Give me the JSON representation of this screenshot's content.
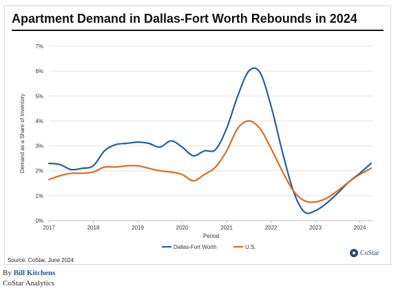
{
  "title": "Apartment Demand in Dallas-Fort Worth Rebounds in 2024",
  "source": "Source: CoStar, June 2024",
  "logo_text": "CoStar",
  "logo_icon": "costar-logo-icon",
  "byline": {
    "prefix": "By ",
    "author": "Bill Kitchens"
  },
  "organization": "CoStar Analytics",
  "chart_data": {
    "type": "line",
    "xlabel": "Period",
    "ylabel": "Demand  as a Share of Inventory",
    "x_ticks": [
      "2017",
      "2018",
      "2019",
      "2020",
      "2021",
      "2022",
      "2023",
      "2024"
    ],
    "y_ticks": [
      "0%",
      "1%",
      "2%",
      "3%",
      "4%",
      "5%",
      "6%",
      "7%"
    ],
    "xlim": [
      2017,
      2024.3
    ],
    "ylim": [
      0,
      7
    ],
    "grid": "horizontal",
    "legend_position": "bottom",
    "series": [
      {
        "name": "Dallas-Fort Worth",
        "color": "#1f5fa0",
        "x": [
          2017.0,
          2017.25,
          2017.5,
          2017.75,
          2018.0,
          2018.25,
          2018.5,
          2018.75,
          2019.0,
          2019.25,
          2019.5,
          2019.75,
          2020.0,
          2020.25,
          2020.5,
          2020.75,
          2021.0,
          2021.25,
          2021.5,
          2021.75,
          2022.0,
          2022.25,
          2022.5,
          2022.75,
          2023.0,
          2023.25,
          2023.5,
          2023.75,
          2024.0,
          2024.25
        ],
        "y": [
          2.3,
          2.25,
          2.05,
          2.1,
          2.2,
          2.8,
          3.05,
          3.1,
          3.15,
          3.1,
          2.95,
          3.2,
          2.95,
          2.6,
          2.8,
          2.85,
          3.7,
          5.0,
          6.0,
          5.95,
          4.6,
          2.8,
          1.2,
          0.35,
          0.4,
          0.7,
          1.1,
          1.55,
          1.9,
          2.3
        ]
      },
      {
        "name": "U.S.",
        "color": "#e06a1b",
        "x": [
          2017.0,
          2017.25,
          2017.5,
          2017.75,
          2018.0,
          2018.25,
          2018.5,
          2018.75,
          2019.0,
          2019.25,
          2019.5,
          2019.75,
          2020.0,
          2020.25,
          2020.5,
          2020.75,
          2021.0,
          2021.25,
          2021.5,
          2021.75,
          2022.0,
          2022.25,
          2022.5,
          2022.75,
          2023.0,
          2023.25,
          2023.5,
          2023.75,
          2024.0,
          2024.25
        ],
        "y": [
          1.65,
          1.8,
          1.9,
          1.9,
          1.95,
          2.15,
          2.15,
          2.2,
          2.2,
          2.1,
          2.0,
          1.95,
          1.85,
          1.6,
          1.85,
          2.15,
          2.8,
          3.7,
          4.0,
          3.7,
          2.9,
          2.0,
          1.2,
          0.8,
          0.75,
          0.9,
          1.2,
          1.55,
          1.85,
          2.1
        ]
      }
    ]
  }
}
